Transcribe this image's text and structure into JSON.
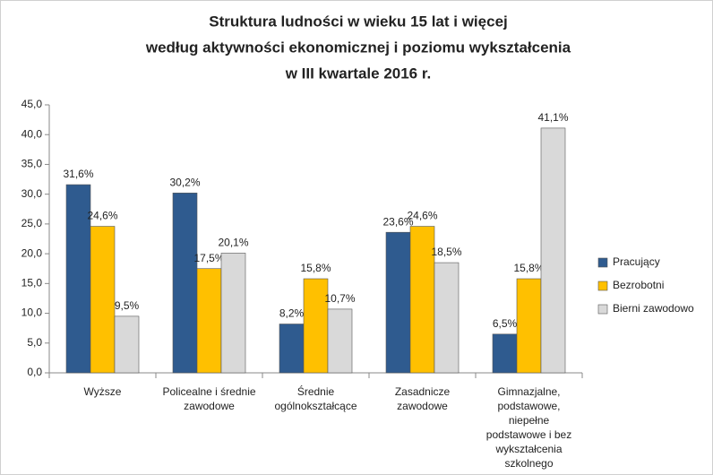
{
  "chart_data": {
    "type": "bar",
    "title": [
      "Struktura ludności w wieku 15 lat i więcej",
      "według aktywności ekonomicznej i poziomu wykształcenia",
      "w III kwartale 2016 r."
    ],
    "categories": [
      "Wyższe",
      "Policealne i średnie\nzawodowe",
      "Średnie\nogólnokształcące",
      "Zasadnicze\nzawodowe",
      "Gimnazjalne,\npodstawowe,\nniepełne\npodstawowe i bez\nwykształcenia\nszkolnego"
    ],
    "series": [
      {
        "name": "Pracujący",
        "color": "#2f5b8f",
        "values": [
          31.6,
          30.2,
          8.2,
          23.6,
          6.5
        ],
        "value_labels": [
          "31,6%",
          "30,2%",
          "8,2%",
          "23,6%",
          "6,5%"
        ]
      },
      {
        "name": "Bezrobotni",
        "color": "#ffc000",
        "values": [
          24.6,
          17.5,
          15.8,
          24.6,
          15.8
        ],
        "value_labels": [
          "24,6%",
          "17,5%",
          "15,8%",
          "24,6%",
          "15,8%"
        ]
      },
      {
        "name": "Bierni zawodowo",
        "color": "#d9d9d9",
        "values": [
          9.5,
          20.1,
          10.7,
          18.5,
          41.1
        ],
        "value_labels": [
          "9,5%",
          "20,1%",
          "10,7%",
          "18,5%",
          "41,1%"
        ]
      }
    ],
    "ylim": [
      0,
      45
    ],
    "yticks": [
      {
        "value": 0,
        "label": "0,0"
      },
      {
        "value": 5,
        "label": "5,0"
      },
      {
        "value": 10,
        "label": "10,0"
      },
      {
        "value": 15,
        "label": "15,0"
      },
      {
        "value": 20,
        "label": "20,0"
      },
      {
        "value": 25,
        "label": "25,0"
      },
      {
        "value": 30,
        "label": "30,0"
      },
      {
        "value": 35,
        "label": "35,0"
      },
      {
        "value": 40,
        "label": "40,0"
      },
      {
        "value": 45,
        "label": "45,0"
      }
    ],
    "grid": false,
    "legend": "right"
  }
}
